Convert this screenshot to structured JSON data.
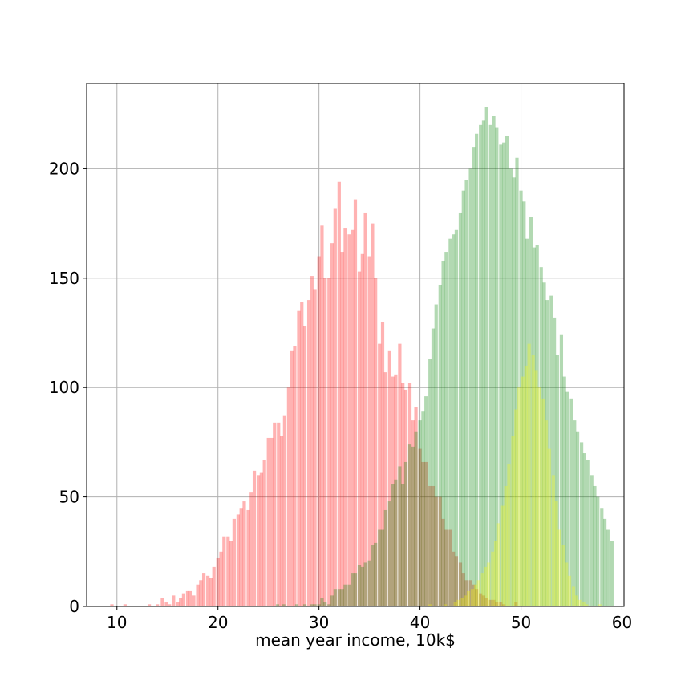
{
  "chart_data": {
    "type": "histogram",
    "xlabel": "mean year income, 10k$",
    "ylabel": "",
    "xlim": [
      7,
      60.2
    ],
    "ylim": [
      0,
      239
    ],
    "xticks": [
      10,
      20,
      30,
      40,
      50,
      60
    ],
    "yticks": [
      0,
      50,
      100,
      150,
      200
    ],
    "grid": true,
    "bin_width": 0.333,
    "series": [
      {
        "color": "#ff0000",
        "alpha": 0.3,
        "bins": [
          [
            9.5,
            1
          ],
          [
            10.8,
            1
          ],
          [
            13.2,
            1
          ],
          [
            14.0,
            1
          ],
          [
            14.5,
            4
          ],
          [
            14.9,
            2
          ],
          [
            15.2,
            1
          ],
          [
            15.6,
            5
          ],
          [
            16.0,
            2
          ],
          [
            16.3,
            4
          ],
          [
            16.6,
            6
          ],
          [
            17.0,
            7
          ],
          [
            17.3,
            7
          ],
          [
            17.6,
            5
          ],
          [
            18.0,
            10
          ],
          [
            18.3,
            12
          ],
          [
            18.6,
            15
          ],
          [
            19.0,
            14
          ],
          [
            19.3,
            13
          ],
          [
            19.6,
            18
          ],
          [
            20.0,
            22
          ],
          [
            20.3,
            25
          ],
          [
            20.6,
            32
          ],
          [
            21.0,
            32
          ],
          [
            21.3,
            30
          ],
          [
            21.6,
            40
          ],
          [
            22.0,
            42
          ],
          [
            22.3,
            45
          ],
          [
            22.6,
            48
          ],
          [
            23.0,
            44
          ],
          [
            23.3,
            52
          ],
          [
            23.6,
            62
          ],
          [
            24.0,
            60
          ],
          [
            24.3,
            61
          ],
          [
            24.6,
            67
          ],
          [
            25.0,
            77
          ],
          [
            25.3,
            77
          ],
          [
            25.6,
            84
          ],
          [
            26.0,
            84
          ],
          [
            26.3,
            78
          ],
          [
            26.6,
            87
          ],
          [
            27.0,
            100
          ],
          [
            27.3,
            117
          ],
          [
            27.6,
            119
          ],
          [
            28.0,
            135
          ],
          [
            28.3,
            139
          ],
          [
            28.6,
            128
          ],
          [
            29.0,
            140
          ],
          [
            29.3,
            151
          ],
          [
            29.6,
            145
          ],
          [
            30.0,
            160
          ],
          [
            30.3,
            174
          ],
          [
            30.6,
            150
          ],
          [
            31.0,
            150
          ],
          [
            31.3,
            166
          ],
          [
            31.6,
            182
          ],
          [
            32.0,
            194
          ],
          [
            32.3,
            162
          ],
          [
            32.6,
            173
          ],
          [
            33.0,
            170
          ],
          [
            33.3,
            172
          ],
          [
            33.6,
            186
          ],
          [
            34.0,
            153
          ],
          [
            34.3,
            161
          ],
          [
            34.6,
            180
          ],
          [
            35.0,
            160
          ],
          [
            35.3,
            175
          ],
          [
            35.6,
            150
          ],
          [
            36.0,
            120
          ],
          [
            36.3,
            130
          ],
          [
            36.6,
            107
          ],
          [
            37.0,
            117
          ],
          [
            37.3,
            105
          ],
          [
            37.6,
            106
          ],
          [
            38.0,
            120
          ],
          [
            38.3,
            102
          ],
          [
            38.6,
            99
          ],
          [
            39.0,
            102
          ],
          [
            39.3,
            85
          ],
          [
            39.6,
            91
          ],
          [
            40.0,
            72
          ],
          [
            40.3,
            66
          ],
          [
            40.6,
            66
          ],
          [
            41.0,
            55
          ],
          [
            41.3,
            55
          ],
          [
            41.6,
            50
          ],
          [
            42.0,
            50
          ],
          [
            42.3,
            40
          ],
          [
            42.6,
            35
          ],
          [
            43.0,
            35
          ],
          [
            43.3,
            25
          ],
          [
            43.6,
            23
          ],
          [
            44.0,
            20
          ],
          [
            44.3,
            15
          ],
          [
            44.6,
            12
          ],
          [
            45.0,
            12
          ],
          [
            45.3,
            10
          ],
          [
            45.6,
            8
          ],
          [
            46.0,
            6
          ],
          [
            46.3,
            5
          ],
          [
            46.6,
            4
          ],
          [
            47.0,
            3
          ],
          [
            47.3,
            3
          ],
          [
            47.6,
            2
          ],
          [
            48.0,
            2
          ],
          [
            48.3,
            1
          ],
          [
            49.5,
            2
          ]
        ]
      },
      {
        "color": "#008000",
        "alpha": 0.3,
        "bins": [
          [
            25.9,
            1
          ],
          [
            26.5,
            1
          ],
          [
            27.8,
            1
          ],
          [
            28.6,
            1
          ],
          [
            29.3,
            1
          ],
          [
            29.6,
            1
          ],
          [
            30.0,
            1
          ],
          [
            30.3,
            4
          ],
          [
            30.6,
            2
          ],
          [
            31.0,
            1
          ],
          [
            31.3,
            5
          ],
          [
            31.6,
            8
          ],
          [
            32.0,
            8
          ],
          [
            32.3,
            8
          ],
          [
            32.6,
            10
          ],
          [
            33.0,
            10
          ],
          [
            33.3,
            15
          ],
          [
            33.6,
            15
          ],
          [
            34.0,
            19
          ],
          [
            34.3,
            18
          ],
          [
            34.6,
            20
          ],
          [
            35.0,
            21
          ],
          [
            35.3,
            28
          ],
          [
            35.6,
            29
          ],
          [
            36.0,
            35
          ],
          [
            36.3,
            35
          ],
          [
            36.6,
            44
          ],
          [
            37.0,
            48
          ],
          [
            37.3,
            56
          ],
          [
            37.6,
            58
          ],
          [
            38.0,
            64
          ],
          [
            38.3,
            56
          ],
          [
            38.6,
            66
          ],
          [
            39.0,
            74
          ],
          [
            39.3,
            73
          ],
          [
            39.6,
            80
          ],
          [
            40.0,
            85
          ],
          [
            40.3,
            89
          ],
          [
            40.6,
            96
          ],
          [
            41.0,
            113
          ],
          [
            41.3,
            127
          ],
          [
            41.6,
            138
          ],
          [
            42.0,
            147
          ],
          [
            42.3,
            158
          ],
          [
            42.6,
            162
          ],
          [
            43.0,
            168
          ],
          [
            43.3,
            170
          ],
          [
            43.6,
            172
          ],
          [
            44.0,
            180
          ],
          [
            44.3,
            190
          ],
          [
            44.6,
            195
          ],
          [
            45.0,
            200
          ],
          [
            45.3,
            210
          ],
          [
            45.6,
            216
          ],
          [
            46.0,
            220
          ],
          [
            46.3,
            222
          ],
          [
            46.6,
            228
          ],
          [
            47.0,
            220
          ],
          [
            47.3,
            224
          ],
          [
            47.6,
            219
          ],
          [
            48.0,
            211
          ],
          [
            48.3,
            212
          ],
          [
            48.6,
            215
          ],
          [
            49.0,
            200
          ],
          [
            49.3,
            196
          ],
          [
            49.6,
            205
          ],
          [
            50.0,
            190
          ],
          [
            50.3,
            185
          ],
          [
            50.6,
            168
          ],
          [
            51.0,
            178
          ],
          [
            51.3,
            164
          ],
          [
            51.6,
            165
          ],
          [
            52.0,
            155
          ],
          [
            52.3,
            148
          ],
          [
            52.6,
            140
          ],
          [
            53.0,
            142
          ],
          [
            53.3,
            132
          ],
          [
            53.6,
            115
          ],
          [
            54.0,
            124
          ],
          [
            54.3,
            105
          ],
          [
            54.6,
            98
          ],
          [
            55.0,
            95
          ],
          [
            55.3,
            85
          ],
          [
            55.6,
            80
          ],
          [
            56.0,
            75
          ],
          [
            56.3,
            70
          ],
          [
            56.6,
            67
          ],
          [
            57.0,
            60
          ],
          [
            57.3,
            55
          ],
          [
            57.6,
            50
          ],
          [
            58.0,
            45
          ],
          [
            58.3,
            40
          ],
          [
            58.6,
            35
          ],
          [
            59.0,
            30
          ]
        ]
      },
      {
        "color": "#ffff00",
        "alpha": 0.3,
        "bins": [
          [
            41.0,
            1
          ],
          [
            42.5,
            1
          ],
          [
            43.5,
            2
          ],
          [
            43.8,
            3
          ],
          [
            44.2,
            4
          ],
          [
            44.5,
            5
          ],
          [
            44.8,
            7
          ],
          [
            45.2,
            8
          ],
          [
            45.5,
            10
          ],
          [
            45.8,
            12
          ],
          [
            46.2,
            15
          ],
          [
            46.5,
            18
          ],
          [
            46.8,
            20
          ],
          [
            47.2,
            25
          ],
          [
            47.5,
            30
          ],
          [
            47.8,
            38
          ],
          [
            48.2,
            46
          ],
          [
            48.5,
            55
          ],
          [
            48.8,
            65
          ],
          [
            49.2,
            78
          ],
          [
            49.5,
            90
          ],
          [
            49.8,
            100
          ],
          [
            50.2,
            105
          ],
          [
            50.5,
            110
          ],
          [
            50.8,
            120
          ],
          [
            51.2,
            115
          ],
          [
            51.5,
            108
          ],
          [
            51.8,
            100
          ],
          [
            52.2,
            95
          ],
          [
            52.5,
            85
          ],
          [
            52.8,
            72
          ],
          [
            53.2,
            60
          ],
          [
            53.5,
            48
          ],
          [
            53.8,
            35
          ],
          [
            54.2,
            28
          ],
          [
            54.5,
            20
          ],
          [
            54.8,
            14
          ],
          [
            55.2,
            9
          ],
          [
            55.5,
            5
          ],
          [
            55.8,
            3
          ],
          [
            56.2,
            2
          ],
          [
            56.5,
            1
          ],
          [
            57.8,
            1
          ]
        ]
      }
    ]
  }
}
